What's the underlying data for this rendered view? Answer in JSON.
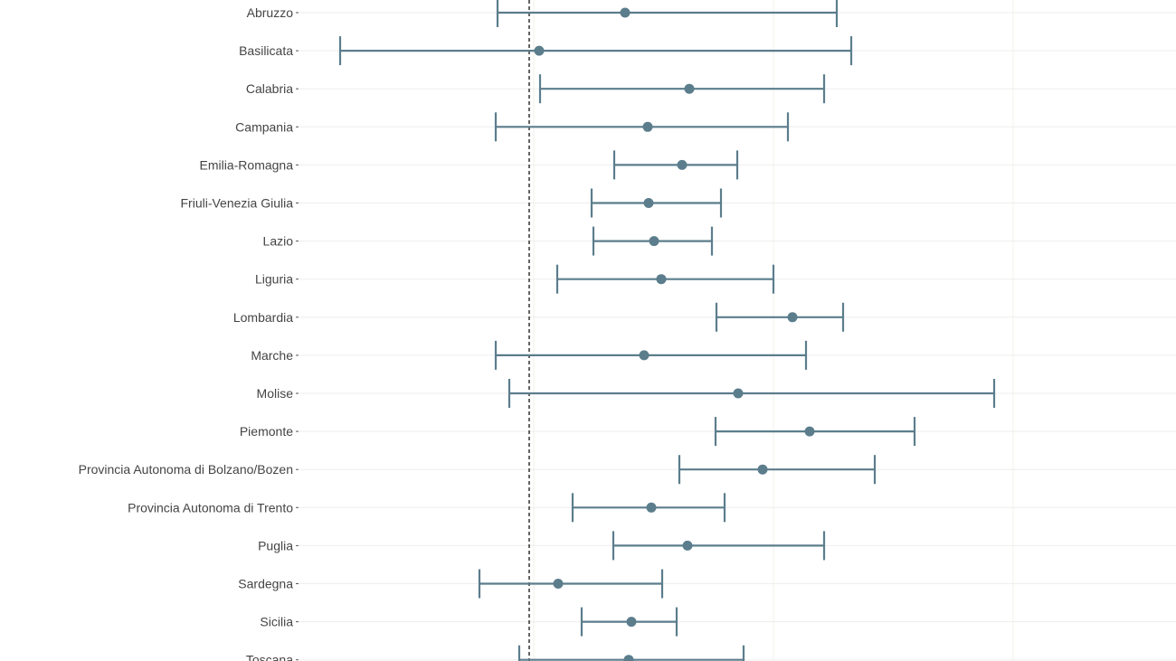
{
  "chart_data": {
    "type": "forest",
    "orientation": "horizontal",
    "categories": [
      "Abruzzo",
      "Basilicata",
      "Calabria",
      "Campania",
      "Emilia-Romagna",
      "Friuli-Venezia Giulia",
      "Lazio",
      "Liguria",
      "Lombardia",
      "Marche",
      "Molise",
      "Piemonte",
      "Provincia Autonoma di Bolzano/Bozen",
      "Provincia Autonoma di Trento",
      "Puglia",
      "Sardegna",
      "Sicilia",
      "Toscana"
    ],
    "estimate": [
      691,
      596,
      762,
      716,
      754,
      717,
      723,
      731,
      876,
      712,
      816,
      895,
      843,
      720,
      760,
      617,
      698,
      695
    ],
    "lower": [
      550,
      376,
      597,
      548,
      679,
      654,
      656,
      616,
      792,
      548,
      563,
      791,
      751,
      633,
      678,
      530,
      643,
      574
    ],
    "upper": [
      925,
      941,
      911,
      871,
      815,
      797,
      787,
      855,
      932,
      891,
      1099,
      1011,
      967,
      801,
      911,
      732,
      748,
      822
    ],
    "reference_line": 585,
    "xlim": [
      330,
      1300
    ],
    "grid": true,
    "colors": {
      "series": "#5b7d8c",
      "reference": "#222222",
      "grid": "#eeeeee",
      "label": "#444444"
    }
  }
}
